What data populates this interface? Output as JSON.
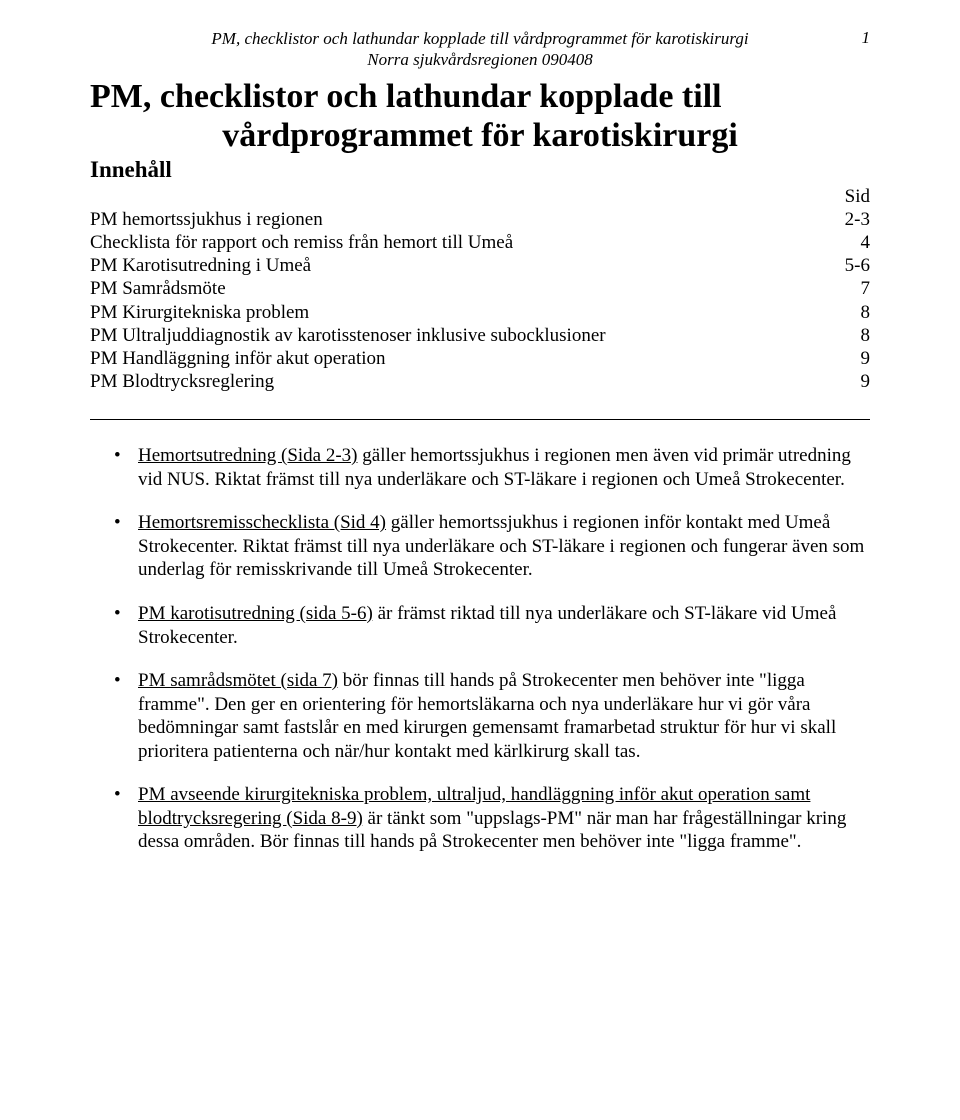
{
  "header": {
    "line1": "PM, checklistor och lathundar kopplade till vårdprogrammet för karotiskirurgi",
    "line2": "Norra sjukvårdsregionen 090408",
    "pageNumber": "1"
  },
  "title": {
    "line1": "PM, checklistor och lathundar kopplade till",
    "line2": "vårdprogrammet för karotiskirurgi"
  },
  "innehall": "Innehåll",
  "toc": {
    "sidHeader": "Sid",
    "rows": [
      {
        "label": "PM hemortssjukhus i regionen",
        "page": "2-3"
      },
      {
        "label": "Checklista för rapport och remiss från hemort till Umeå",
        "page": "4"
      },
      {
        "label": "PM Karotisutredning i Umeå",
        "page": "5-6"
      },
      {
        "label": "PM Samrådsmöte",
        "page": "7"
      },
      {
        "label": "PM Kirurgitekniska problem",
        "page": "8"
      },
      {
        "label": "PM Ultraljuddiagnostik av karotisstenoser inklusive subocklusioner",
        "page": "8"
      },
      {
        "label": "PM Handläggning inför akut operation",
        "page": "9"
      },
      {
        "label": "PM Blodtrycksreglering",
        "page": "9"
      }
    ]
  },
  "bullets": [
    {
      "uPrefix": "Hemortsutredning (Sida 2-3)",
      "rest": " gäller hemortssjukhus i regionen men även vid primär utredning vid NUS. Riktat främst till nya underläkare och ST-läkare i regionen och Umeå Strokecenter."
    },
    {
      "uPrefix": "Hemortsremisschecklista (Sid 4)",
      "rest": " gäller hemortssjukhus i regionen inför kontakt med Umeå Strokecenter. Riktat främst till nya underläkare och ST-läkare i regionen och fungerar även som underlag för remisskrivande till Umeå Strokecenter."
    },
    {
      "uPrefix": "PM karotisutredning (sida 5-6)",
      "rest": " är främst riktad till nya underläkare och ST-läkare vid Umeå Strokecenter."
    },
    {
      "uPrefix": "PM samrådsmötet (sida 7)",
      "rest": " bör finnas till hands på Strokecenter men behöver inte \"ligga framme\". Den ger en orientering för hemortsläkarna och nya underläkare hur vi gör våra bedömningar samt fastslår en med kirurgen gemensamt framarbetad struktur för hur vi skall prioritera patienterna och när/hur kontakt med kärlkirurg skall tas."
    },
    {
      "uPrefix": "PM avseende kirurgitekniska problem, ultraljud, handläggning inför akut operation samt blodtrycksregering (Sida 8-9)",
      "rest": " är tänkt som \"uppslags-PM\" när man har frågeställningar kring dessa områden. Bör finnas till hands på Strokecenter men behöver inte \"ligga framme\"."
    }
  ]
}
